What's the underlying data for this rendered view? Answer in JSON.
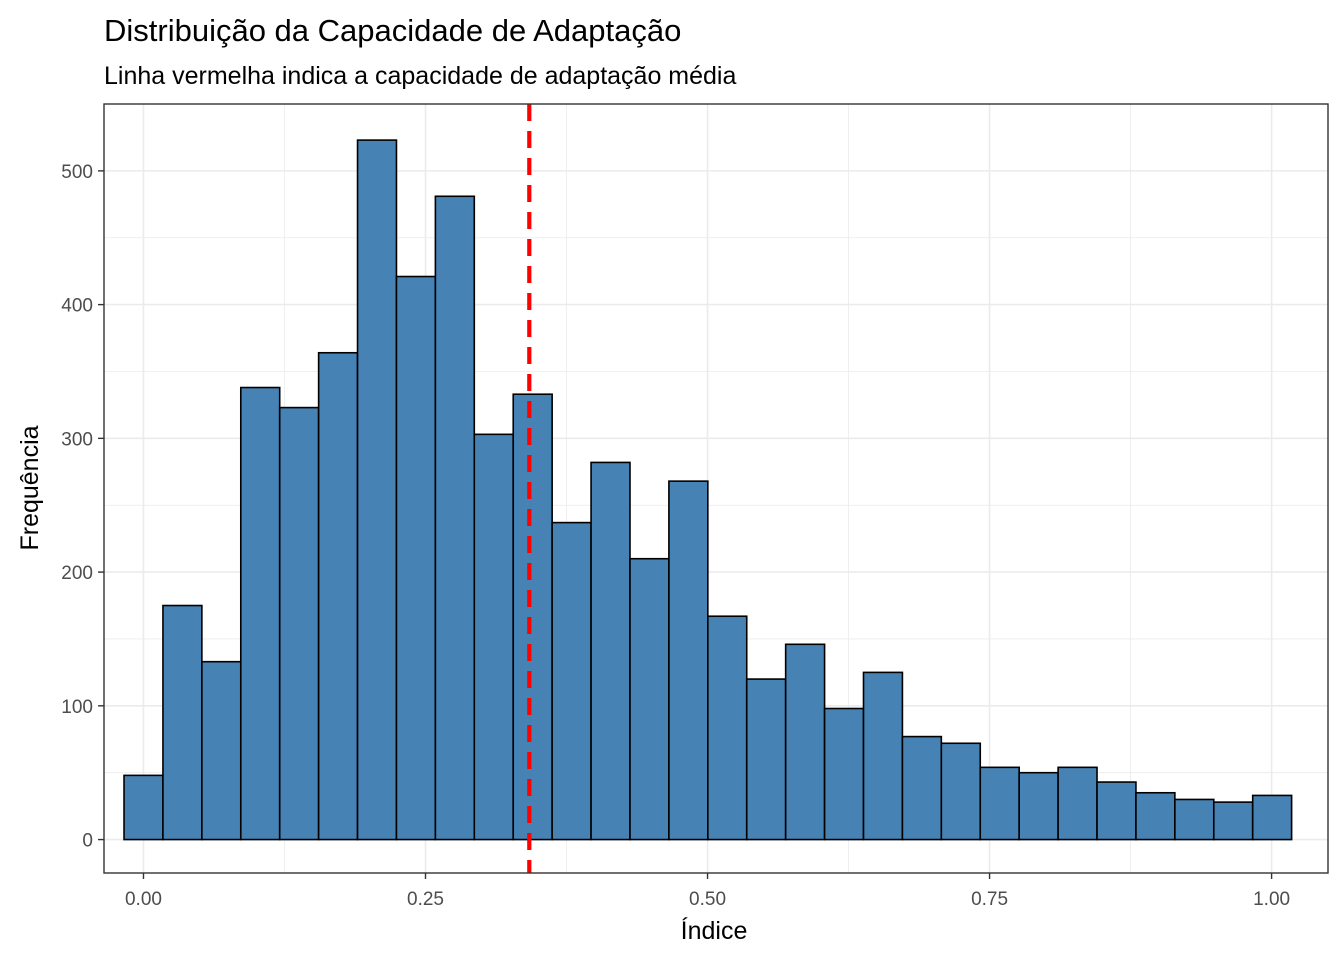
{
  "chart_data": {
    "type": "bar",
    "title": "Distribuição da Capacidade de Adaptação",
    "subtitle": "Linha vermelha indica a capacidade de adaptação média",
    "xlabel": "Índice",
    "ylabel": "Frequência",
    "xlim": [
      -0.035,
      1.05
    ],
    "ylim": [
      -25,
      550
    ],
    "x_ticks": [
      0.0,
      0.25,
      0.5,
      0.75,
      1.0
    ],
    "x_tick_labels": [
      "0.00",
      "0.25",
      "0.50",
      "0.75",
      "1.00"
    ],
    "y_ticks": [
      0,
      100,
      200,
      300,
      400,
      500
    ],
    "y_tick_labels": [
      "0",
      "100",
      "200",
      "300",
      "400",
      "500"
    ],
    "grid": true,
    "bin_width": 0.0345,
    "bins": [
      {
        "x": 0.0,
        "count": 48
      },
      {
        "x": 0.0345,
        "count": 175
      },
      {
        "x": 0.069,
        "count": 133
      },
      {
        "x": 0.1035,
        "count": 338
      },
      {
        "x": 0.138,
        "count": 323
      },
      {
        "x": 0.1725,
        "count": 364
      },
      {
        "x": 0.207,
        "count": 523
      },
      {
        "x": 0.2415,
        "count": 421
      },
      {
        "x": 0.276,
        "count": 481
      },
      {
        "x": 0.3105,
        "count": 303
      },
      {
        "x": 0.345,
        "count": 333
      },
      {
        "x": 0.3795,
        "count": 237
      },
      {
        "x": 0.414,
        "count": 282
      },
      {
        "x": 0.4485,
        "count": 210
      },
      {
        "x": 0.483,
        "count": 268
      },
      {
        "x": 0.5175,
        "count": 167
      },
      {
        "x": 0.552,
        "count": 120
      },
      {
        "x": 0.5865,
        "count": 146
      },
      {
        "x": 0.621,
        "count": 98
      },
      {
        "x": 0.6555,
        "count": 125
      },
      {
        "x": 0.69,
        "count": 77
      },
      {
        "x": 0.7245,
        "count": 72
      },
      {
        "x": 0.759,
        "count": 54
      },
      {
        "x": 0.7935,
        "count": 50
      },
      {
        "x": 0.828,
        "count": 54
      },
      {
        "x": 0.8625,
        "count": 43
      },
      {
        "x": 0.897,
        "count": 35
      },
      {
        "x": 0.9315,
        "count": 30
      },
      {
        "x": 0.966,
        "count": 28
      },
      {
        "x": 1.0005,
        "count": 33
      }
    ],
    "mean_line": {
      "x": 0.342,
      "color": "#ff0000",
      "style": "dashed"
    },
    "colors": {
      "bar_fill": "#4682b4",
      "bar_stroke": "#000000",
      "panel_border": "#333333",
      "grid": "#ebebeb"
    }
  }
}
